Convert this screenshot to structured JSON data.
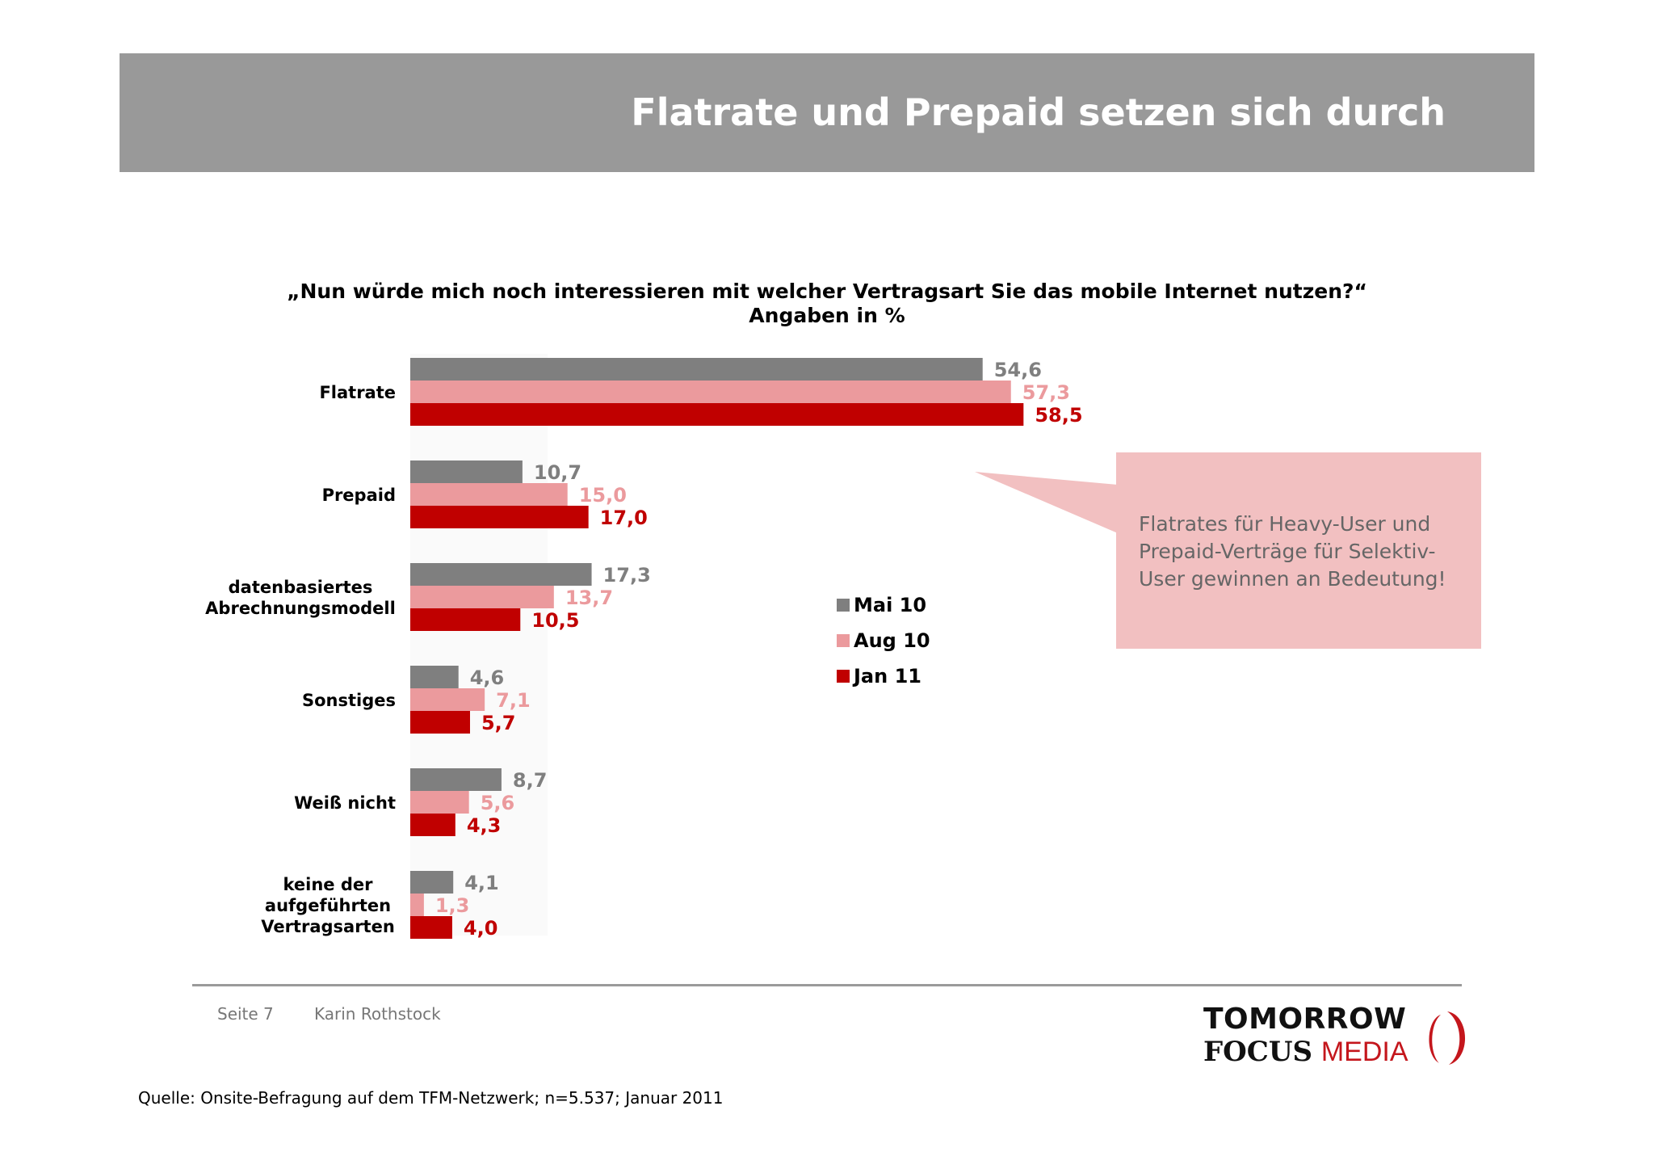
{
  "header": {
    "title": "Flatrate und Prepaid setzen sich durch"
  },
  "question": {
    "line1": "„Nun würde mich noch interessieren mit welcher Vertragsart Sie das mobile Internet nutzen?“",
    "line2": "Angaben in %"
  },
  "chart_data": {
    "type": "bar",
    "orientation": "horizontal",
    "categories": [
      [
        "Flatrate"
      ],
      [
        "Prepaid"
      ],
      [
        "datenbasiertes",
        "Abrechnungsmodell"
      ],
      [
        "Sonstiges"
      ],
      [
        "Weiß nicht"
      ],
      [
        "keine der",
        "aufgeführten",
        "Vertragsarten"
      ]
    ],
    "series": [
      {
        "name": "Mai 10",
        "color": "#7f7f7f",
        "label_color": "#7f7f7f",
        "values": [
          54.6,
          10.7,
          17.3,
          4.6,
          8.7,
          4.1
        ],
        "labels": [
          "54,6",
          "10,7",
          "17,3",
          "4,6",
          "8,7",
          "4,1"
        ]
      },
      {
        "name": "Aug 10",
        "color": "#eb9a9d",
        "label_color": "#eb9a9d",
        "values": [
          57.3,
          15.0,
          13.7,
          7.1,
          5.6,
          1.3
        ],
        "labels": [
          "57,3",
          "15,0",
          "13,7",
          "7,1",
          "5,6",
          "1,3"
        ]
      },
      {
        "name": "Jan 11",
        "color": "#c00000",
        "label_color": "#c00000",
        "values": [
          58.5,
          17.0,
          10.5,
          5.7,
          4.3,
          4.0
        ],
        "labels": [
          "58,5",
          "17,0",
          "10,5",
          "5,7",
          "4,3",
          "4,0"
        ]
      }
    ],
    "xlim": [
      0,
      100
    ],
    "grid": false,
    "legend_position": "right"
  },
  "callout": {
    "text": "Flatrates für Heavy-User und Prepaid-Verträge für Selektiv-User gewinnen an Bedeutung!"
  },
  "footer": {
    "page": "Seite 7",
    "author": "Karin Rothstock",
    "source": "Quelle: Onsite-Befragung auf dem TFM-Netzwerk; n=5.537; Januar 2011"
  },
  "logo": {
    "line1": "TOMORROW",
    "line2a": "FOCUS",
    "line2b": "MEDIA"
  }
}
